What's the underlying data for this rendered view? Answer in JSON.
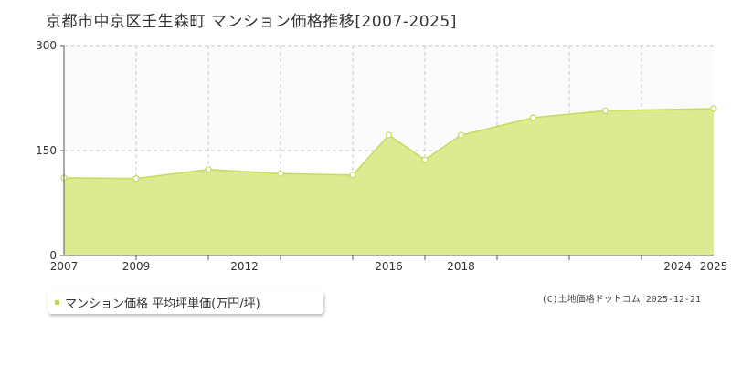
{
  "colors": {
    "fill": "#dceb91",
    "line": "#c2dc5a",
    "marker": "#ffffff",
    "grid": "#c8c8c8",
    "axis": "#555555",
    "legend_swatch": "#bcd84c"
  },
  "chart_data": {
    "type": "area",
    "title": "京都市中京区壬生森町 マンション価格推移[2007-2025]",
    "xlabel": "",
    "ylabel": "",
    "xlim": [
      2007,
      2025
    ],
    "ylim": [
      0,
      300
    ],
    "x_ticks": [
      "2007",
      "2009",
      "2012",
      "2016",
      "2018",
      "2024",
      "2025"
    ],
    "y_ticks": [
      "0",
      "150",
      "300"
    ],
    "grid": true,
    "legend_position": "bottom-left",
    "series": [
      {
        "name": "マンション価格 平均坪単価(万円/坪)",
        "x": [
          2007,
          2009,
          2011,
          2013,
          2015,
          2016,
          2017,
          2018,
          2020,
          2022,
          2025
        ],
        "values": [
          111,
          110,
          123,
          117,
          115,
          172,
          137,
          172,
          197,
          207,
          210
        ]
      }
    ]
  },
  "legend": {
    "label": "マンション価格 平均坪単価(万円/坪)"
  },
  "copyright": "(C)土地価格ドットコム 2025-12-21"
}
